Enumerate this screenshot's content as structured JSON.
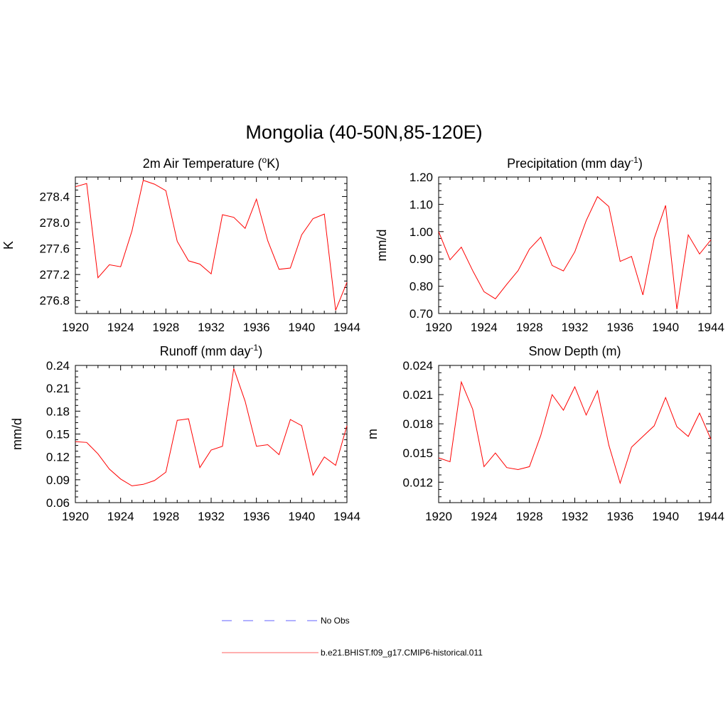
{
  "title": "Mongolia (40-50N,85-120E)",
  "chart_data": [
    {
      "type": "line",
      "title_main": "2m Air Temperature (",
      "title_sup": "o",
      "title_end": "K)",
      "ylabel": "K",
      "xlim": [
        1920,
        1944
      ],
      "ylim": [
        276.6,
        278.7
      ],
      "xticks": [
        1920,
        1924,
        1928,
        1932,
        1936,
        1940,
        1944
      ],
      "xtick_labels": [
        "1920",
        "1924",
        "1928",
        "1932",
        "1936",
        "1940",
        "1944"
      ],
      "yticks": [
        276.8,
        277.2,
        277.6,
        278.0,
        278.4
      ],
      "ytick_labels": [
        "276.8",
        "277.2",
        "277.6",
        "278.0",
        "278.4"
      ],
      "series": [
        {
          "color": "#ff0000",
          "x": [
            1920,
            1921,
            1922,
            1923,
            1924,
            1925,
            1926,
            1927,
            1928,
            1929,
            1930,
            1931,
            1932,
            1933,
            1934,
            1935,
            1936,
            1937,
            1938,
            1939,
            1940,
            1941,
            1942,
            1943,
            1944
          ],
          "values": [
            278.55,
            278.6,
            277.15,
            277.35,
            277.32,
            277.87,
            278.65,
            278.59,
            278.49,
            277.71,
            277.41,
            277.36,
            277.21,
            278.12,
            278.08,
            277.91,
            278.36,
            277.72,
            277.28,
            277.3,
            277.81,
            278.06,
            278.13,
            276.65,
            277.08
          ]
        }
      ]
    },
    {
      "type": "line",
      "title_main": "Precipitation (mm day",
      "title_sup": "-1",
      "title_end": ")",
      "ylabel": "mm/d",
      "xlim": [
        1920,
        1944
      ],
      "ylim": [
        0.7,
        1.2
      ],
      "xticks": [
        1920,
        1924,
        1928,
        1932,
        1936,
        1940,
        1944
      ],
      "xtick_labels": [
        "1920",
        "1924",
        "1928",
        "1932",
        "1936",
        "1940",
        "1944"
      ],
      "yticks": [
        0.7,
        0.8,
        0.9,
        1.0,
        1.1,
        1.2
      ],
      "ytick_labels": [
        "0.70",
        "0.80",
        "0.90",
        "1.00",
        "1.10",
        "1.20"
      ],
      "series": [
        {
          "color": "#ff0000",
          "x": [
            1920,
            1921,
            1922,
            1923,
            1924,
            1925,
            1926,
            1927,
            1928,
            1929,
            1930,
            1931,
            1932,
            1933,
            1934,
            1935,
            1936,
            1937,
            1938,
            1939,
            1940,
            1941,
            1942,
            1943,
            1944
          ],
          "values": [
            1.0,
            0.897,
            0.943,
            0.857,
            0.78,
            0.754,
            0.807,
            0.857,
            0.936,
            0.98,
            0.876,
            0.856,
            0.926,
            1.04,
            1.128,
            1.092,
            0.891,
            0.909,
            0.768,
            0.975,
            1.096,
            0.716,
            0.988,
            0.918,
            0.97
          ]
        }
      ]
    },
    {
      "type": "line",
      "title_main": "Runoff (mm day",
      "title_sup": "-1",
      "title_end": ")",
      "ylabel": "mm/d",
      "xlim": [
        1920,
        1944
      ],
      "ylim": [
        0.06,
        0.24
      ],
      "xticks": [
        1920,
        1924,
        1928,
        1932,
        1936,
        1940,
        1944
      ],
      "xtick_labels": [
        "1920",
        "1924",
        "1928",
        "1932",
        "1936",
        "1940",
        "1944"
      ],
      "yticks": [
        0.06,
        0.09,
        0.12,
        0.15,
        0.18,
        0.21,
        0.24
      ],
      "ytick_labels": [
        "0.06",
        "0.09",
        "0.12",
        "0.15",
        "0.18",
        "0.21",
        "0.24"
      ],
      "series": [
        {
          "color": "#ff0000",
          "x": [
            1920,
            1921,
            1922,
            1923,
            1924,
            1925,
            1926,
            1927,
            1928,
            1929,
            1930,
            1931,
            1932,
            1933,
            1934,
            1935,
            1936,
            1937,
            1938,
            1939,
            1940,
            1941,
            1942,
            1943,
            1944
          ],
          "values": [
            0.14,
            0.139,
            0.124,
            0.104,
            0.091,
            0.082,
            0.084,
            0.089,
            0.1,
            0.168,
            0.17,
            0.106,
            0.129,
            0.134,
            0.236,
            0.193,
            0.134,
            0.136,
            0.123,
            0.169,
            0.161,
            0.096,
            0.12,
            0.109,
            0.161
          ]
        }
      ]
    },
    {
      "type": "line",
      "title_main": "Snow Depth (m)",
      "title_sup": "",
      "title_end": "",
      "ylabel": "m",
      "xlim": [
        1920,
        1944
      ],
      "ylim": [
        0.0099,
        0.024
      ],
      "xticks": [
        1920,
        1924,
        1928,
        1932,
        1936,
        1940,
        1944
      ],
      "xtick_labels": [
        "1920",
        "1924",
        "1928",
        "1932",
        "1936",
        "1940",
        "1944"
      ],
      "yticks": [
        0.012,
        0.015,
        0.018,
        0.021,
        0.024
      ],
      "ytick_labels": [
        "0.012",
        "0.015",
        "0.018",
        "0.021",
        "0.024"
      ],
      "series": [
        {
          "color": "#ff0000",
          "x": [
            1920,
            1921,
            1922,
            1923,
            1924,
            1925,
            1926,
            1927,
            1928,
            1929,
            1930,
            1931,
            1932,
            1933,
            1934,
            1935,
            1936,
            1937,
            1938,
            1939,
            1940,
            1941,
            1942,
            1943,
            1944
          ],
          "values": [
            0.0145,
            0.0141,
            0.0223,
            0.0195,
            0.0136,
            0.015,
            0.0135,
            0.0133,
            0.0136,
            0.0168,
            0.021,
            0.0194,
            0.0218,
            0.0189,
            0.0214,
            0.0158,
            0.0119,
            0.0156,
            0.0167,
            0.0178,
            0.0207,
            0.0177,
            0.0167,
            0.0191,
            0.0164
          ]
        }
      ]
    }
  ],
  "legend": [
    {
      "label": "No Obs",
      "color": "#8080ff",
      "style": "dashed"
    },
    {
      "label": "b.e21.BHIST.f09_g17.CMIP6-historical.011",
      "color": "#ff8080",
      "style": "solid"
    }
  ]
}
